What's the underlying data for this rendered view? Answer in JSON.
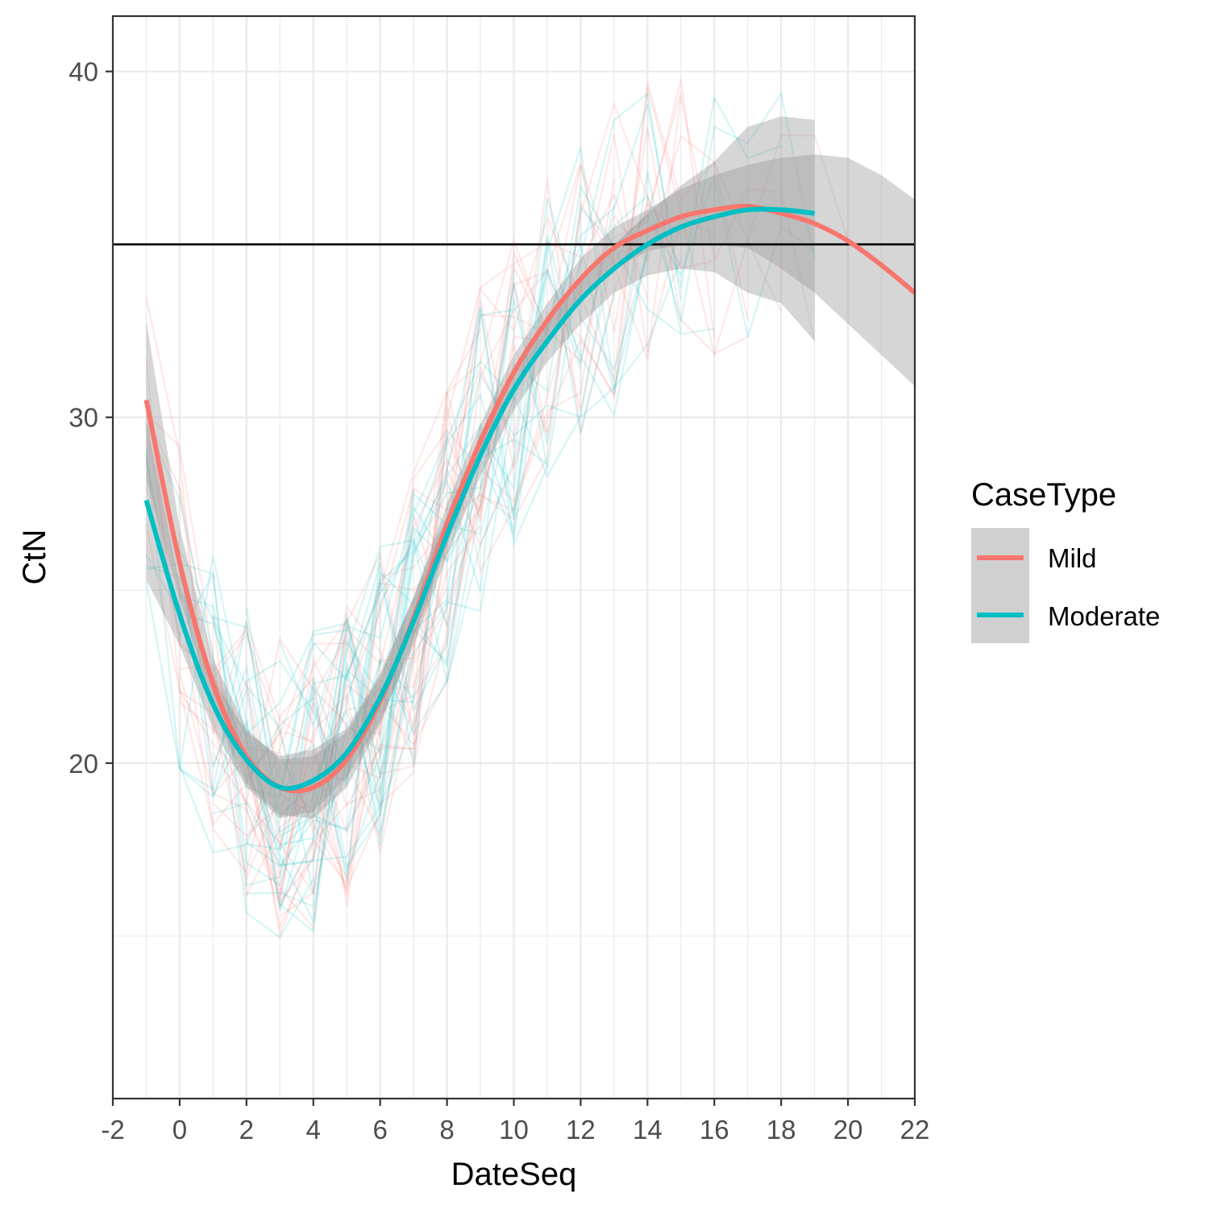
{
  "chart_data": {
    "type": "line",
    "title": "",
    "xlabel": "DateSeq",
    "ylabel": "CtN",
    "xlim": [
      -2,
      22
    ],
    "ylim": [
      10.3,
      41.6
    ],
    "x_ticks": [
      -2,
      0,
      2,
      4,
      6,
      8,
      10,
      12,
      14,
      16,
      18,
      20,
      22
    ],
    "x_tick_labels": [
      "-2",
      "0",
      "2",
      "4",
      "6",
      "8",
      "10",
      "12",
      "14",
      "16",
      "18",
      "20",
      "22"
    ],
    "y_ticks": [
      20,
      30,
      40
    ],
    "y_tick_labels": [
      "20",
      "30",
      "40"
    ],
    "y_minor_ticks": [
      15,
      25,
      35
    ],
    "grid": true,
    "reference_line_y": 35,
    "legend": {
      "title": "CaseType",
      "position": "right",
      "entries": [
        {
          "label": "Mild",
          "color": "#F8766D"
        },
        {
          "label": "Moderate",
          "color": "#00BFC4"
        }
      ]
    },
    "series": [
      {
        "name": "Mild",
        "color": "#F8766D",
        "x": [
          -1,
          0,
          1,
          2,
          3,
          4,
          5,
          6,
          7,
          8,
          9,
          10,
          11,
          12,
          13,
          14,
          15,
          16,
          17,
          18,
          19,
          20,
          21,
          22
        ],
        "y": [
          30.5,
          25.8,
          22.3,
          20.2,
          19.3,
          19.3,
          20.1,
          21.8,
          24.2,
          26.9,
          29.3,
          31.3,
          32.8,
          34.0,
          34.9,
          35.4,
          35.8,
          36.0,
          36.1,
          35.9,
          35.6,
          35.1,
          34.4,
          33.6
        ],
        "ci_lower": [
          28.2,
          24.8,
          21.6,
          19.4,
          18.5,
          18.4,
          19.3,
          21.1,
          23.6,
          26.3,
          28.8,
          30.8,
          32.3,
          33.4,
          34.3,
          34.8,
          35.0,
          35.0,
          34.9,
          34.3,
          33.6,
          32.7,
          31.8,
          30.9
        ],
        "ci_upper": [
          32.8,
          26.8,
          23.0,
          21.0,
          20.1,
          20.2,
          20.9,
          22.5,
          24.8,
          27.5,
          29.8,
          31.8,
          33.3,
          34.6,
          35.5,
          36.0,
          36.6,
          37.0,
          37.3,
          37.5,
          37.6,
          37.5,
          37.0,
          36.3
        ]
      },
      {
        "name": "Moderate",
        "color": "#00BFC4",
        "x": [
          -1,
          0,
          1,
          2,
          3,
          4,
          5,
          6,
          7,
          8,
          9,
          10,
          11,
          12,
          13,
          14,
          15,
          16,
          17,
          18,
          19
        ],
        "y": [
          27.6,
          24.3,
          21.7,
          20.1,
          19.3,
          19.5,
          20.3,
          21.9,
          24.1,
          26.6,
          28.9,
          30.8,
          32.2,
          33.4,
          34.3,
          35.0,
          35.5,
          35.8,
          36.0,
          36.0,
          35.9
        ],
        "ci_lower": [
          25.3,
          23.4,
          21.0,
          19.3,
          18.4,
          18.6,
          19.6,
          21.2,
          23.4,
          26.0,
          28.3,
          30.2,
          31.6,
          32.7,
          33.6,
          34.1,
          34.3,
          34.2,
          33.6,
          33.3,
          32.2
        ],
        "ci_upper": [
          29.9,
          25.2,
          22.4,
          20.9,
          20.2,
          20.4,
          21.0,
          22.6,
          24.8,
          27.2,
          29.5,
          31.4,
          32.8,
          34.1,
          35.0,
          35.9,
          36.7,
          37.4,
          38.4,
          38.7,
          38.6
        ]
      }
    ]
  }
}
